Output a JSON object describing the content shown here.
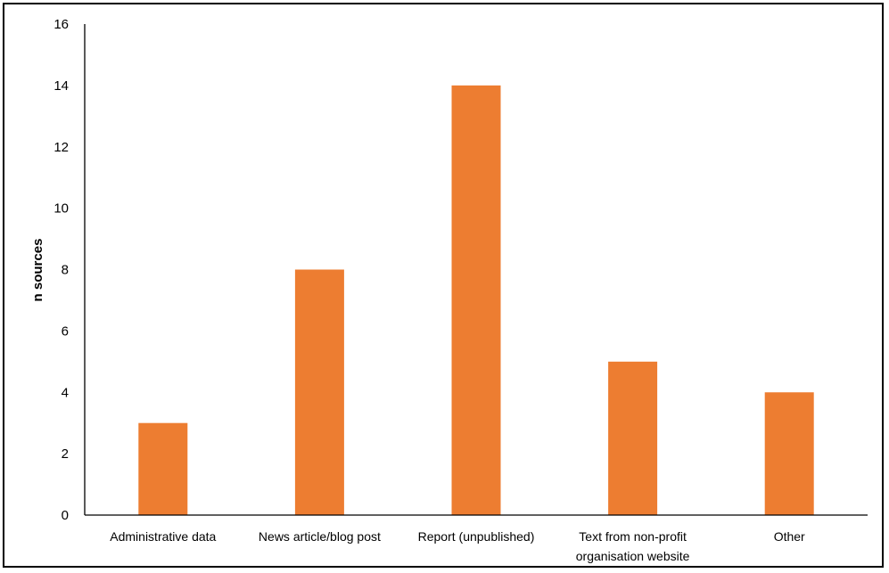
{
  "chart_data": {
    "type": "bar",
    "title": "",
    "xlabel": "",
    "ylabel": "n sources",
    "categories": [
      [
        "Administrative data"
      ],
      [
        "News article/blog post"
      ],
      [
        "Report (unpublished)"
      ],
      [
        "Text from non-profit",
        "organisation website"
      ],
      [
        "Other"
      ]
    ],
    "values": [
      3,
      8,
      14,
      5,
      4
    ],
    "ylim": [
      0,
      16
    ],
    "yticks": [
      0,
      2,
      4,
      6,
      8,
      10,
      12,
      14,
      16
    ],
    "grid": false,
    "legend": "none",
    "colors": {
      "bar": "#ED7D31",
      "axis": "#000000"
    }
  }
}
